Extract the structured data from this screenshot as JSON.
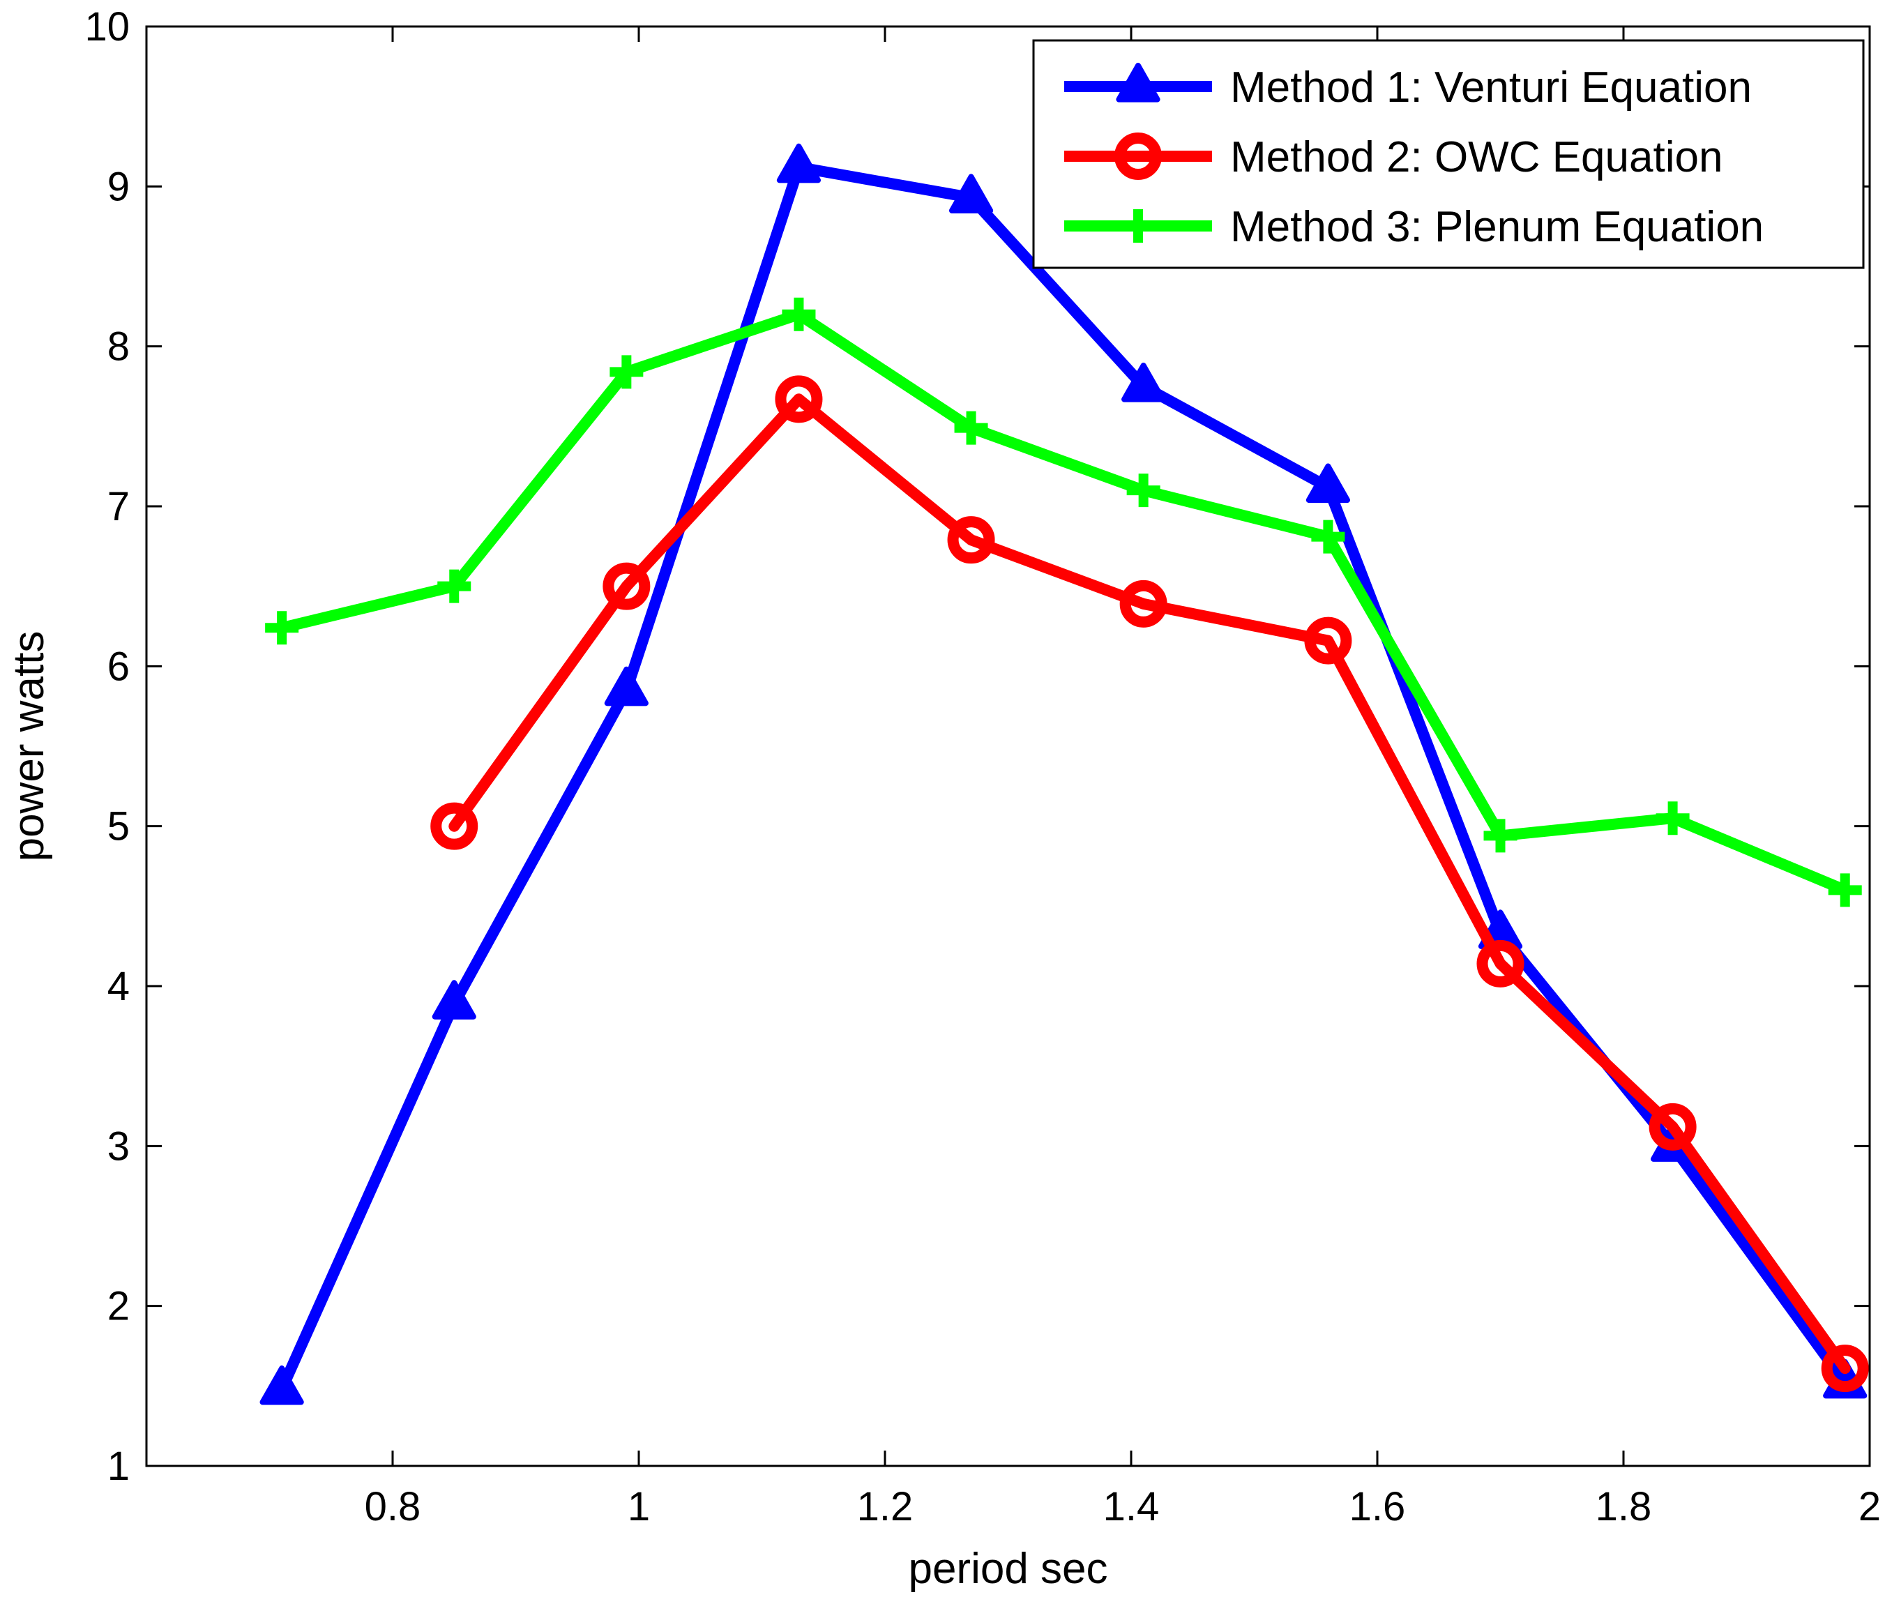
{
  "chart_data": {
    "type": "line",
    "title": "",
    "xlabel": "period sec",
    "ylabel": "power watts",
    "xlim": [
      0.6,
      2.0
    ],
    "ylim": [
      1,
      10
    ],
    "xticks": [
      0.8,
      1,
      1.2,
      1.4,
      1.6,
      1.8,
      2
    ],
    "xtick_labels": [
      "0.8",
      "1",
      "1.2",
      "1.4",
      "1.6",
      "1.8",
      "2"
    ],
    "yticks": [
      1,
      2,
      3,
      4,
      5,
      6,
      7,
      8,
      9,
      10
    ],
    "ytick_labels": [
      "1",
      "2",
      "3",
      "4",
      "5",
      "6",
      "7",
      "8",
      "9",
      "10"
    ],
    "grid": false,
    "legend_position": "top-right",
    "series": [
      {
        "name": "Method 1: Venturi Equation",
        "color": "#0000ff",
        "marker": "triangle",
        "x": [
          0.71,
          0.85,
          0.99,
          1.13,
          1.27,
          1.41,
          1.56,
          1.7,
          1.84,
          1.98
        ],
        "y": [
          1.48,
          3.89,
          5.85,
          9.12,
          8.93,
          7.75,
          7.12,
          4.33,
          3.0,
          1.52
        ]
      },
      {
        "name": "Method 2: OWC Equation",
        "color": "#ff0000",
        "marker": "circle",
        "x": [
          0.85,
          0.99,
          1.13,
          1.27,
          1.41,
          1.56,
          1.7,
          1.84,
          1.98
        ],
        "y": [
          5.0,
          6.5,
          7.67,
          6.79,
          6.39,
          6.16,
          4.14,
          3.12,
          1.61
        ]
      },
      {
        "name": "Method 3: Plenum Equation",
        "color": "#00ff00",
        "marker": "plus",
        "x": [
          0.71,
          0.85,
          0.99,
          1.13,
          1.27,
          1.41,
          1.56,
          1.7,
          1.84,
          1.98
        ],
        "y": [
          6.24,
          6.5,
          7.84,
          8.2,
          7.49,
          7.1,
          6.81,
          4.94,
          5.05,
          4.6
        ]
      }
    ]
  }
}
